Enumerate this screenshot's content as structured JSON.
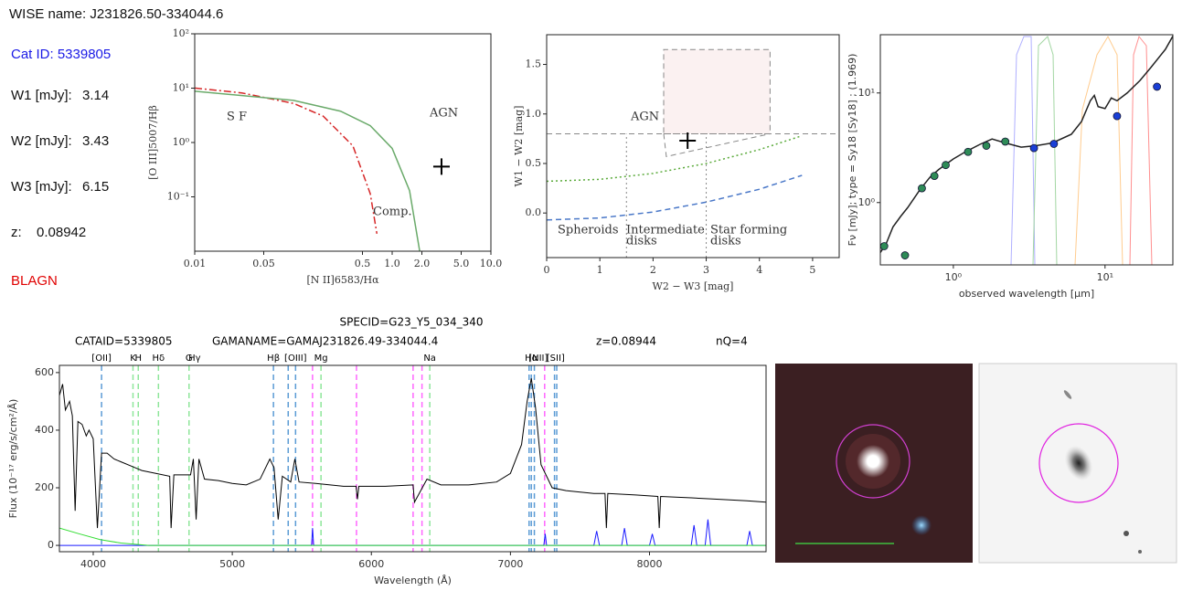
{
  "info": {
    "wise_name": "WISE name: J231826.50-334044.6",
    "cat_id": "Cat ID: 5339805",
    "rows": [
      {
        "label": "W1 [mJy]:",
        "value": 3.14
      },
      {
        "label": "W2 [mJy]:",
        "value": 3.43
      },
      {
        "label": "W3 [mJy]:",
        "value": 6.15
      },
      {
        "label": "z:",
        "value": 0.08942
      }
    ],
    "class": "BLAGN"
  },
  "chart_data": [
    {
      "type": "line",
      "x_label": "[N II]6583/Hα",
      "y_label": "[O III]5007/Hβ",
      "xscale": "log",
      "yscale": "log",
      "xlim": [
        0.01,
        10
      ],
      "ylim": [
        0.01,
        100
      ],
      "xticks": [
        0.01,
        0.05,
        0.5,
        {
          "value": 1,
          "label": "1.0"
        },
        {
          "value": 2,
          "label": "2.0"
        },
        {
          "value": 5,
          "label": "5.0"
        },
        {
          "value": 10,
          "label": "10.0"
        }
      ],
      "yticks": [
        {
          "value": 100,
          "label": "10²"
        },
        {
          "value": 10,
          "label": "10¹"
        },
        {
          "value": 1,
          "label": "10⁰"
        },
        {
          "value": 0.1,
          "label": "10⁻¹"
        }
      ],
      "series": [
        {
          "color": "#d62728",
          "dash": "dashdot",
          "x": [
            0.01,
            0.03,
            0.1,
            0.2,
            0.4,
            0.6,
            0.7
          ],
          "values": [
            10.05,
            8.17,
            5.24,
            3.06,
            0.867,
            0.114,
            0.021
          ]
        },
        {
          "color": "#6aaa6a",
          "dash": "solid",
          "x": [
            0.01,
            0.1,
            0.3,
            0.6,
            1.0,
            1.5,
            1.9
          ],
          "values": [
            8.77,
            5.96,
            3.77,
            2.04,
            0.78,
            0.13,
            0.01
          ]
        }
      ],
      "points": [
        {
          "marker": "+",
          "color": "#000000",
          "x": [
            3.16
          ],
          "values": [
            0.36
          ]
        }
      ],
      "annotations": [
        "S F",
        "AGN",
        "Comp."
      ]
    },
    {
      "type": "line",
      "x_label": "W2 − W3 [mag]",
      "y_label": "W1 − W2 [mag]",
      "xlim": [
        0,
        5.5
      ],
      "ylim": [
        -0.45,
        1.8
      ],
      "xticks": [
        0,
        1,
        2,
        3,
        4,
        5
      ],
      "yticks": [
        {
          "value": 0,
          "label": "0.0"
        },
        0.5,
        {
          "value": 1,
          "label": "1.0"
        },
        1.5
      ],
      "regions": [
        {
          "color": "#888888",
          "fill": "#fbf1f1",
          "dash": "dashed",
          "x": [
            2.2,
            4.2,
            4.2,
            2.2,
            2.2
          ],
          "values": [
            0.8,
            0.8,
            1.65,
            1.65,
            0.8
          ]
        },
        {
          "color": "#888888",
          "dash": "dashed",
          "x": [
            2.2,
            2.25,
            4.2
          ],
          "values": [
            0.8,
            0.57,
            0.8
          ]
        },
        {
          "color": "#888888",
          "dash": "dashed",
          "x": [
            0,
            5.5
          ],
          "values": [
            0.8,
            0.8
          ]
        },
        {
          "color": "#888888",
          "dash": "dotted",
          "x": [
            1.5,
            1.5
          ],
          "values": [
            -0.45,
            0.8
          ]
        },
        {
          "color": "#888888",
          "dash": "dotted",
          "x": [
            3,
            3
          ],
          "values": [
            -0.45,
            0.8
          ]
        }
      ],
      "series": [
        {
          "color": "#5aaa3a",
          "dash": "dotted",
          "x": [
            0,
            1,
            2,
            3,
            4,
            4.8
          ],
          "values": [
            0.32,
            0.34,
            0.4,
            0.5,
            0.64,
            0.78
          ]
        },
        {
          "color": "#4a78c8",
          "dash": "dashed",
          "x": [
            0,
            1,
            2,
            3,
            4,
            4.8
          ],
          "values": [
            -0.07,
            -0.05,
            0.01,
            0.11,
            0.24,
            0.38
          ]
        }
      ],
      "points": [
        {
          "marker": "+",
          "color": "#000000",
          "x": [
            2.65
          ],
          "values": [
            0.73
          ]
        }
      ],
      "annotations": [
        "AGN",
        "Spheroids",
        "Intermediate",
        "disks",
        "Star forming",
        "disks"
      ]
    },
    {
      "type": "line",
      "x_label": "observed wavelength [μm]",
      "y_label": "Fν [mJy]; type = Sy18 [Sy18] ; (1.969)",
      "xscale": "log",
      "yscale": "log",
      "xlim": [
        0.33,
        28
      ],
      "ylim": [
        0.27,
        34
      ],
      "xticks": [
        {
          "value": 1,
          "label": "10⁰"
        },
        {
          "value": 10,
          "label": "10¹"
        }
      ],
      "yticks": [
        {
          "value": 1,
          "label": "10⁰"
        },
        {
          "value": 10,
          "label": "10¹"
        }
      ],
      "series": [
        {
          "color": "#222222",
          "dash": "solid",
          "x": [
            0.33,
            0.36,
            0.4,
            0.45,
            0.5,
            0.6,
            0.7,
            0.8,
            1.0,
            1.2,
            1.5,
            1.8,
            2.2,
            2.8,
            3.5,
            4.5,
            6,
            7,
            8,
            8.5,
            9,
            10,
            11,
            12,
            14,
            17,
            20,
            25,
            28
          ],
          "values": [
            0.35,
            0.42,
            0.6,
            0.75,
            0.9,
            1.3,
            1.7,
            2.0,
            2.5,
            2.9,
            3.4,
            3.8,
            3.5,
            3.2,
            3.3,
            3.5,
            4.2,
            5.5,
            8.5,
            9.5,
            7.5,
            7.2,
            9,
            8.5,
            10,
            13,
            17,
            25,
            33
          ]
        }
      ],
      "points": [
        {
          "marker": "o",
          "color": "#2e8b57",
          "x": [
            0.35,
            0.48,
            0.62,
            0.75,
            0.89,
            1.25,
            1.65,
            2.2
          ],
          "values": [
            0.4,
            0.33,
            1.35,
            1.75,
            2.2,
            2.9,
            3.3,
            3.6
          ]
        },
        {
          "marker": "o",
          "color": "#1a3fd6",
          "x": [
            3.4,
            4.6,
            12,
            22
          ],
          "values": [
            3.14,
            3.43,
            6.15,
            11.4
          ]
        }
      ]
    },
    {
      "type": "line",
      "title": "SPECID=G23_Y5_034_340",
      "subtitles": [
        "CATAID=5339805",
        "GAMANAME=GAMAJ231826.49-334044.4",
        "z=0.08944",
        "nQ=4"
      ],
      "x_label": "Wavelength (Å)",
      "y_label": "Flux (10⁻¹⁷ erg/s/cm²/Å)",
      "xlim": [
        3757,
        8838
      ],
      "ylim": [
        -22,
        625
      ],
      "xticks": [
        4000,
        5000,
        6000,
        7000,
        8000
      ],
      "yticks": [
        0,
        200,
        400,
        600
      ],
      "marker_lines": [
        {
          "color": "#5b9bd5",
          "x": [
            4060,
            5296,
            5402,
            5455,
            7134,
            7150,
            7172,
            7317,
            7333
          ]
        },
        {
          "color": "#8ee69a",
          "x": [
            4286,
            4324,
            4469,
            4689,
            5638,
            6420
          ]
        },
        {
          "color": "#ff66ff",
          "x": [
            5577,
            5893,
            6300,
            6364,
            7246
          ]
        }
      ],
      "line_labels": [
        "[OII]",
        "K",
        "H",
        "Hδ",
        "G",
        "Hγ",
        "Hβ",
        "[OIII]",
        "Mg",
        "Na",
        "Hα",
        "[NII]",
        "[SII]"
      ],
      "line_label_x": [
        4060,
        4286,
        4324,
        4469,
        4689,
        4729,
        5296,
        5455,
        5638,
        6420,
        7150,
        7200,
        7325
      ],
      "series": [
        {
          "color": "#000000",
          "dash": "solid",
          "x": [
            3757,
            3780,
            3800,
            3830,
            3850,
            3870,
            3890,
            3920,
            3950,
            3970,
            4000,
            4030,
            4060,
            4100,
            4150,
            4200,
            4300,
            4350,
            4450,
            4550,
            4560,
            4580,
            4700,
            4720,
            4740,
            4760,
            4800,
            4900,
            5000,
            5100,
            5200,
            5270,
            5300,
            5330,
            5360,
            5420,
            5450,
            5480,
            5600,
            5800,
            5890,
            5900,
            5910,
            6100,
            6300,
            6310,
            6400,
            6500,
            6700,
            6900,
            7000,
            7080,
            7120,
            7150,
            7180,
            7220,
            7300,
            7400,
            7600,
            7680,
            7690,
            7700,
            7900,
            8060,
            8070,
            8080,
            8300,
            8500,
            8700,
            8838
          ],
          "values": [
            520,
            560,
            470,
            500,
            450,
            120,
            430,
            420,
            380,
            400,
            370,
            60,
            320,
            320,
            300,
            290,
            270,
            260,
            250,
            240,
            60,
            245,
            245,
            300,
            90,
            300,
            230,
            225,
            215,
            210,
            230,
            300,
            270,
            90,
            240,
            220,
            300,
            220,
            215,
            205,
            205,
            160,
            205,
            205,
            210,
            150,
            230,
            210,
            210,
            220,
            250,
            350,
            500,
            580,
            480,
            280,
            200,
            190,
            180,
            180,
            60,
            180,
            175,
            170,
            60,
            170,
            165,
            160,
            155,
            150
          ]
        },
        {
          "color": "#1a1aff",
          "dash": "solid",
          "x": [
            3757,
            5570,
            5577,
            5585,
            7240,
            7250,
            7260,
            7600,
            7620,
            7640,
            7800,
            7820,
            7840,
            8000,
            8020,
            8040,
            8300,
            8320,
            8340,
            8400,
            8420,
            8440,
            8700,
            8720,
            8740,
            8838
          ],
          "values": [
            0,
            0,
            60,
            0,
            0,
            40,
            0,
            0,
            50,
            0,
            0,
            60,
            0,
            0,
            40,
            0,
            0,
            70,
            0,
            0,
            90,
            0,
            0,
            50,
            0,
            0
          ]
        },
        {
          "color": "#33dd33",
          "dash": "solid",
          "x": [
            3757,
            3900,
            4050,
            4200,
            4400,
            8838
          ],
          "values": [
            60,
            40,
            20,
            8,
            0,
            0
          ]
        }
      ]
    }
  ]
}
